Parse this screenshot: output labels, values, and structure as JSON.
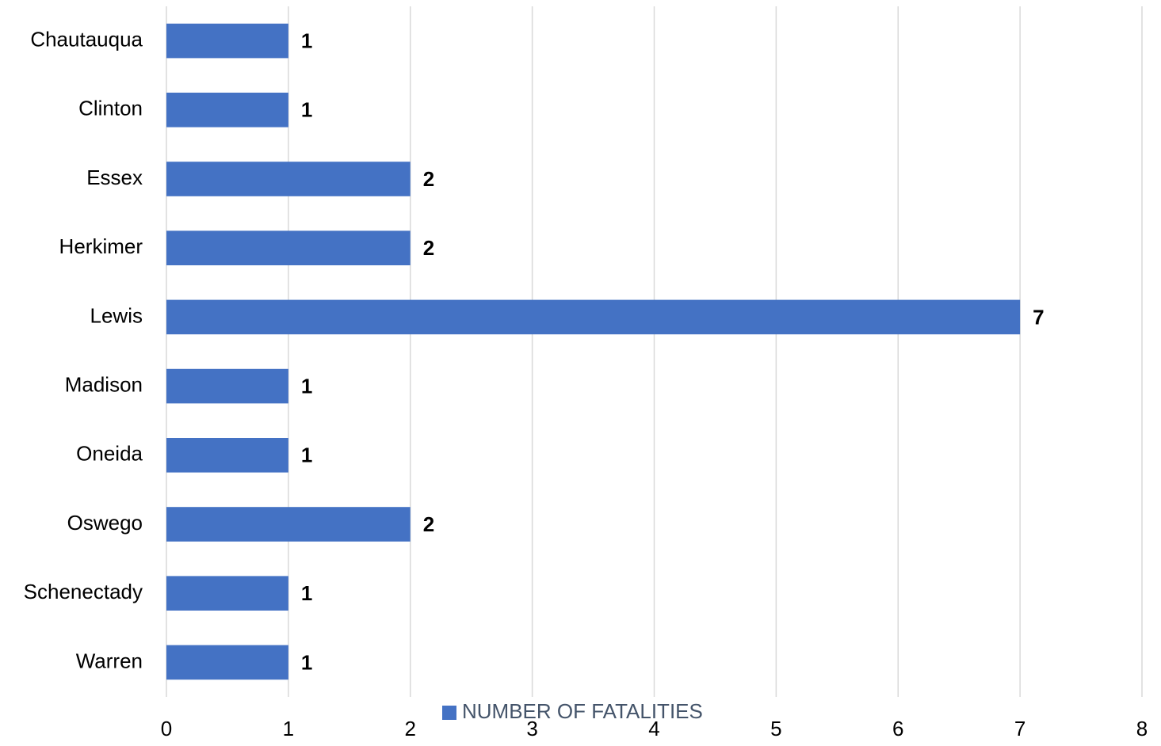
{
  "chart_data": {
    "type": "bar",
    "orientation": "horizontal",
    "categories": [
      "Chautauqua",
      "Clinton",
      "Essex",
      "Herkimer",
      "Lewis",
      "Madison",
      "Oneida",
      "Oswego",
      "Schenectady",
      "Warren"
    ],
    "series": [
      {
        "name": "NUMBER OF FATALITIES",
        "color": "#4472c4",
        "values": [
          1,
          1,
          2,
          2,
          7,
          1,
          1,
          2,
          1,
          1
        ]
      }
    ],
    "xlim": [
      0,
      8
    ],
    "xticks": [
      0,
      1,
      2,
      3,
      4,
      5,
      6,
      7,
      8
    ],
    "grid": true,
    "legend": "bottom"
  }
}
